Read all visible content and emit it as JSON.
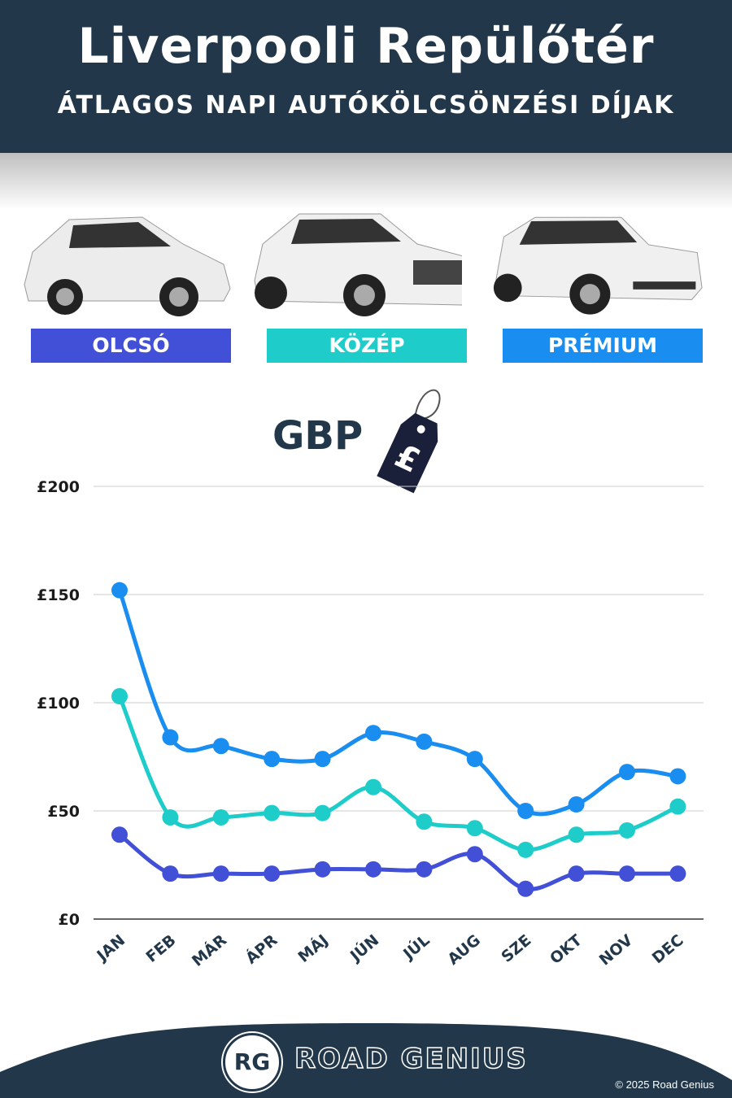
{
  "header": {
    "title": "Liverpooli Repülőtér",
    "subtitle": "ÁTLAGOS NAPI AUTÓKÖLCSÖNZÉSI DÍJAK"
  },
  "categories": [
    {
      "label": "OLCSÓ",
      "color": "#4150d6"
    },
    {
      "label": "KÖZÉP",
      "color": "#1ecdc9"
    },
    {
      "label": "PRÉMIUM",
      "color": "#1a8ef0"
    }
  ],
  "currency_label": "GBP",
  "currency_symbol": "£",
  "chart_data": {
    "type": "line",
    "title": "ÁTLAGOS NAPI AUTÓKÖLCSÖNZÉSI DÍJAK",
    "ylabel": "GBP",
    "ylim": [
      0,
      200
    ],
    "yticks": [
      0,
      50,
      100,
      150,
      200
    ],
    "ytick_labels": [
      "£0",
      "£50",
      "£100",
      "£150",
      "£200"
    ],
    "grid": true,
    "categories": [
      "JAN",
      "FEB",
      "MÁR",
      "ÁPR",
      "MÁJ",
      "JÚN",
      "JÚL",
      "AUG",
      "SZE",
      "OKT",
      "NOV",
      "DEC"
    ],
    "series": [
      {
        "name": "PRÉMIUM",
        "color": "#1a8ef0",
        "values": [
          152,
          84,
          80,
          74,
          74,
          86,
          82,
          74,
          50,
          53,
          68,
          66
        ]
      },
      {
        "name": "KÖZÉP",
        "color": "#1ecdc9",
        "values": [
          103,
          47,
          47,
          49,
          49,
          61,
          45,
          42,
          32,
          39,
          41,
          52
        ]
      },
      {
        "name": "OLCSÓ",
        "color": "#4150d6",
        "values": [
          39,
          21,
          21,
          21,
          23,
          23,
          23,
          30,
          14,
          21,
          21,
          21
        ]
      }
    ]
  },
  "footer": {
    "brand": "ROAD GENIUS",
    "logo": "RG",
    "copyright": "© 2025 Road Genius",
    "bg": "#22384a"
  }
}
